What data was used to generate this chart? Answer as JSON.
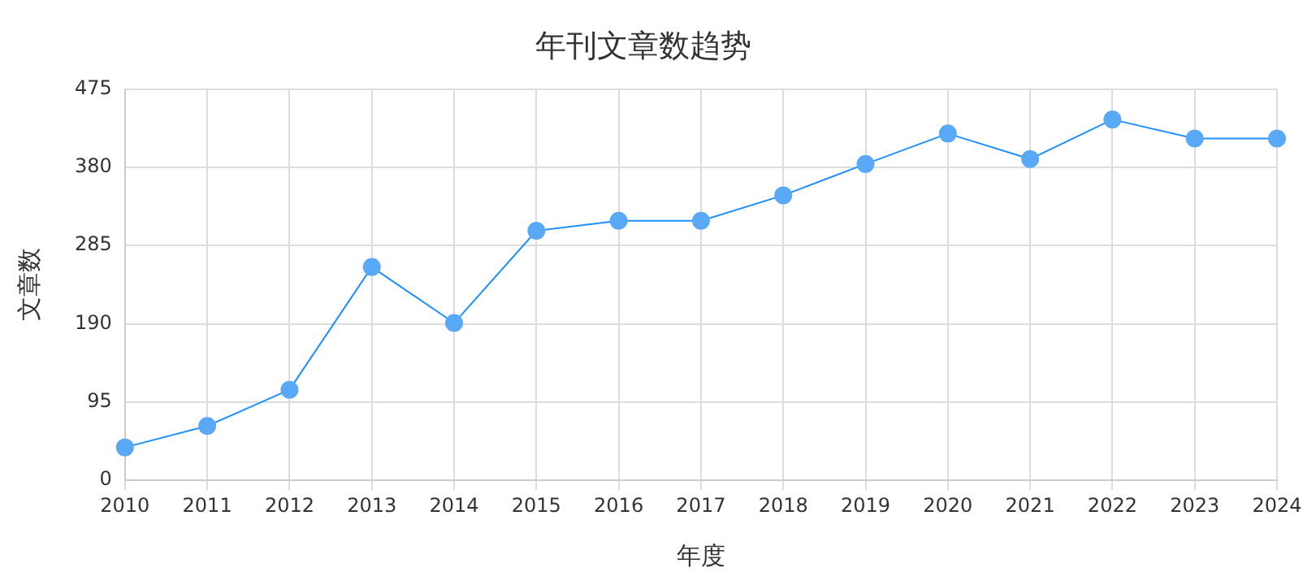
{
  "chart_data": {
    "type": "line",
    "title": "年刊文章数趋势",
    "xlabel": "年度",
    "ylabel": "文章数",
    "categories": [
      "2010",
      "2011",
      "2012",
      "2013",
      "2014",
      "2015",
      "2016",
      "2017",
      "2018",
      "2019",
      "2020",
      "2021",
      "2022",
      "2023",
      "2024"
    ],
    "series": [
      {
        "color": "#1e90ff",
        "values": [
          40,
          66,
          110,
          259,
          191,
          303,
          315,
          315,
          346,
          384,
          421,
          390,
          438,
          415,
          415
        ]
      }
    ],
    "ylim": [
      0,
      475
    ],
    "yticks": [
      0,
      95,
      190,
      285,
      380,
      475
    ],
    "grid": true,
    "legend": false,
    "marker": "circle",
    "line_style": "solid"
  }
}
